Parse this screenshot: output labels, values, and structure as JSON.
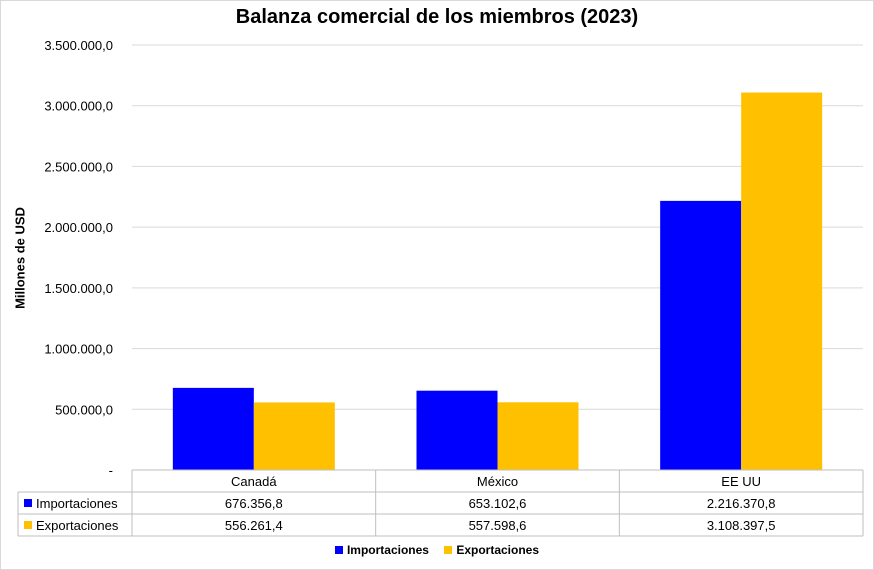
{
  "chart_data": {
    "type": "bar",
    "title": "Balanza comercial de los miembros (2023)",
    "ylabel": "Millones de USD",
    "xlabel": "",
    "categories": [
      "Canadá",
      "México",
      "EE UU"
    ],
    "ylim": [
      0,
      3500000
    ],
    "yticks": [
      0,
      500000,
      1000000,
      1500000,
      2000000,
      2500000,
      3000000,
      3500000
    ],
    "ytick_labels": [
      "-",
      "500.000,0",
      "1.000.000,0",
      "1.500.000,0",
      "2.000.000,0",
      "2.500.000,0",
      "3.000.000,0",
      "3.500.000,0"
    ],
    "grid": true,
    "legend_position": "bottom",
    "series": [
      {
        "name": "Importaciones",
        "color": "#0000ff",
        "values": [
          676356.8,
          653102.6,
          2216370.8
        ],
        "labels": [
          "676.356,8",
          "653.102,6",
          "2.216.370,8"
        ]
      },
      {
        "name": "Exportaciones",
        "color": "#ffc000",
        "values": [
          556261.4,
          557598.6,
          3108397.5
        ],
        "labels": [
          "556.261,4",
          "557.598,6",
          "3.108.397,5"
        ]
      }
    ]
  }
}
